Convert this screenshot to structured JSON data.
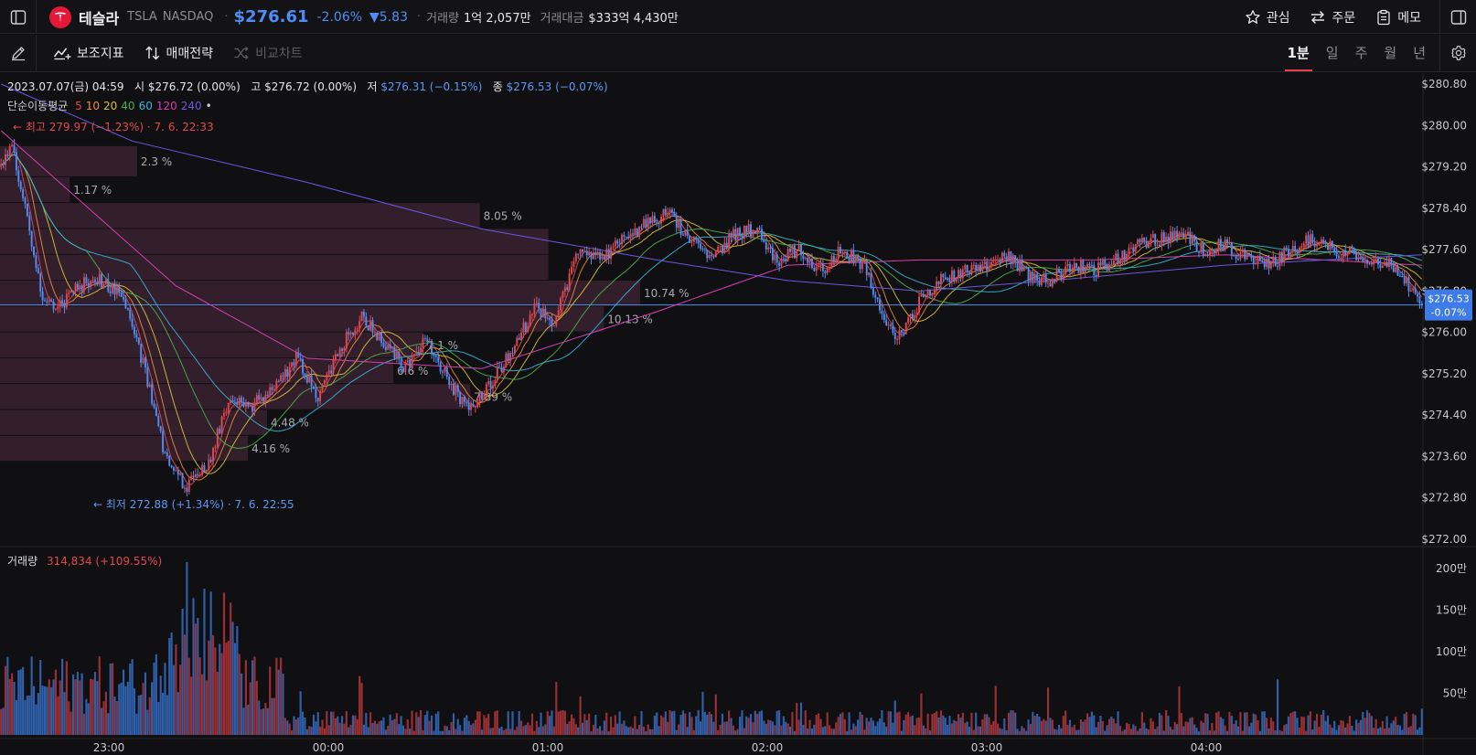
{
  "stock": {
    "name": "테슬라",
    "ticker": "TSLA",
    "exchange": "NASDAQ",
    "price": "$276.61",
    "change_pct": "-2.06%",
    "change_abs": "▼5.83",
    "volume_label": "거래량",
    "volume_value": "1억 2,057만",
    "amount_label": "거래대금",
    "amount_value": "$333억 4,430만"
  },
  "actions": {
    "watch": "관심",
    "order": "주문",
    "memo": "메모"
  },
  "toolbar": {
    "indicators": "보조지표",
    "strategy": "매매전략",
    "compare": "비교차트"
  },
  "periods": [
    {
      "label": "1분",
      "active": true
    },
    {
      "label": "일",
      "active": false
    },
    {
      "label": "주",
      "active": false
    },
    {
      "label": "월",
      "active": false
    },
    {
      "label": "년",
      "active": false
    }
  ],
  "info": {
    "date": "2023.07.07(금) 04:59",
    "open_label": "시",
    "open": "$276.72 (0.00%)",
    "high_label": "고",
    "high": "$276.72 (0.00%)",
    "low_label": "저",
    "low": "$276.31 (−0.15%)",
    "close_label": "종",
    "close": "$276.53 (−0.07%)"
  },
  "ma": {
    "title": "단순이동평균",
    "periods": [
      "5",
      "10",
      "20",
      "40",
      "60",
      "120",
      "240"
    ],
    "extra": "•"
  },
  "volume_legend": {
    "title": "거래량",
    "value": "314,834 (+109.55%)"
  },
  "colors": {
    "up": "#e0484e",
    "down": "#4e8df5",
    "up_volume": "#9b3034",
    "down_volume": "#2f5fa8",
    "volume_profile": "#3a2231",
    "ma": [
      "#e0484e",
      "#f08a3c",
      "#d9c23a",
      "#4cae4c",
      "#3bb4d8",
      "#d43fb2",
      "#6b58e0"
    ]
  },
  "chart_data": {
    "type": "candlestick",
    "price_axis": {
      "ticks": [
        "$280.80",
        "$280.00",
        "$279.20",
        "$278.40",
        "$277.60",
        "$276.80",
        "$276.00",
        "$275.20",
        "$274.40",
        "$273.60",
        "$272.80",
        "$272.00"
      ],
      "range": [
        272.0,
        280.8
      ]
    },
    "current_price": {
      "label": "$276.53",
      "change": "-0.07%",
      "value": 276.53
    },
    "time_axis": {
      "ticks": [
        "23:00",
        "00:00",
        "01:00",
        "02:00",
        "03:00",
        "04:00"
      ]
    },
    "high_marker": {
      "text": "← 최고 279.97 (−1.23%) · 7. 6. 22:33",
      "value": 279.97
    },
    "low_marker": {
      "text": "← 최저 272.88 (+1.34%) · 7. 6. 22:55",
      "value": 272.88
    },
    "volume_axis": {
      "ticks": [
        "200만",
        "150만",
        "100만",
        "50만"
      ],
      "max": 2200000
    },
    "volume_profile": [
      {
        "price_lo": 279.0,
        "price_hi": 279.6,
        "pct": "2.3 %"
      },
      {
        "price_lo": 278.5,
        "price_hi": 279.0,
        "pct": "1.17 %"
      },
      {
        "price_lo": 278.0,
        "price_hi": 278.5,
        "pct": "8.05 %"
      },
      {
        "price_lo": 277.5,
        "price_hi": 278.0,
        "pct": ""
      },
      {
        "price_lo": 277.0,
        "price_hi": 277.5,
        "pct": ""
      },
      {
        "price_lo": 276.5,
        "price_hi": 277.0,
        "pct": "10.74 %"
      },
      {
        "price_lo": 276.0,
        "price_hi": 276.5,
        "pct": "10.13 %"
      },
      {
        "price_lo": 275.5,
        "price_hi": 276.0,
        "pct": "7.1 %"
      },
      {
        "price_lo": 275.0,
        "price_hi": 275.5,
        "pct": "6.6 %"
      },
      {
        "price_lo": 274.5,
        "price_hi": 275.0,
        "pct": "7.89 %"
      },
      {
        "price_lo": 274.0,
        "price_hi": 274.5,
        "pct": "4.48 %"
      },
      {
        "price_lo": 273.5,
        "price_hi": 274.0,
        "pct": "4.16 %"
      }
    ],
    "price_path": [
      [
        0,
        279.2
      ],
      [
        5,
        279.6
      ],
      [
        10,
        278.6
      ],
      [
        18,
        276.8
      ],
      [
        25,
        276.4
      ],
      [
        35,
        276.9
      ],
      [
        45,
        277.0
      ],
      [
        55,
        276.7
      ],
      [
        65,
        275.4
      ],
      [
        75,
        273.6
      ],
      [
        85,
        273.0
      ],
      [
        95,
        273.5
      ],
      [
        105,
        274.8
      ],
      [
        115,
        274.6
      ],
      [
        125,
        274.9
      ],
      [
        135,
        275.5
      ],
      [
        145,
        274.8
      ],
      [
        155,
        275.7
      ],
      [
        165,
        276.3
      ],
      [
        175,
        275.8
      ],
      [
        185,
        275.3
      ],
      [
        195,
        275.9
      ],
      [
        205,
        275.0
      ],
      [
        215,
        274.5
      ],
      [
        225,
        275.1
      ],
      [
        235,
        275.8
      ],
      [
        245,
        276.5
      ],
      [
        252,
        276.1
      ],
      [
        258,
        276.8
      ],
      [
        265,
        277.7
      ],
      [
        275,
        277.4
      ],
      [
        285,
        277.8
      ],
      [
        295,
        278.1
      ],
      [
        305,
        278.3
      ],
      [
        315,
        277.8
      ],
      [
        325,
        277.4
      ],
      [
        335,
        277.9
      ],
      [
        345,
        278.0
      ],
      [
        355,
        277.4
      ],
      [
        365,
        277.6
      ],
      [
        375,
        277.2
      ],
      [
        385,
        277.6
      ],
      [
        395,
        277.3
      ],
      [
        405,
        276.1
      ],
      [
        412,
        275.9
      ],
      [
        420,
        276.6
      ],
      [
        430,
        277.0
      ],
      [
        440,
        277.2
      ],
      [
        450,
        277.3
      ],
      [
        460,
        277.5
      ],
      [
        470,
        277.1
      ],
      [
        480,
        277.0
      ],
      [
        490,
        277.3
      ],
      [
        500,
        277.2
      ],
      [
        510,
        277.4
      ],
      [
        520,
        277.7
      ],
      [
        530,
        277.8
      ],
      [
        540,
        277.9
      ],
      [
        550,
        277.6
      ],
      [
        560,
        277.7
      ],
      [
        570,
        277.4
      ],
      [
        580,
        277.3
      ],
      [
        590,
        277.6
      ],
      [
        600,
        277.8
      ],
      [
        610,
        277.6
      ],
      [
        620,
        277.5
      ],
      [
        630,
        277.4
      ],
      [
        640,
        277.2
      ],
      [
        650,
        276.5
      ]
    ],
    "ma_long": [
      {
        "period": "120",
        "points": [
          [
            0,
            279.9
          ],
          [
            80,
            276.9
          ],
          [
            140,
            275.5
          ],
          [
            220,
            275.3
          ],
          [
            300,
            276.4
          ],
          [
            360,
            277.3
          ],
          [
            420,
            277.4
          ],
          [
            500,
            277.4
          ],
          [
            560,
            277.5
          ],
          [
            650,
            277.3
          ]
        ]
      },
      {
        "period": "240",
        "points": [
          [
            0,
            280.8
          ],
          [
            60,
            279.7
          ],
          [
            140,
            278.9
          ],
          [
            220,
            278.0
          ],
          [
            300,
            277.4
          ],
          [
            360,
            277.0
          ],
          [
            420,
            276.8
          ],
          [
            480,
            277.0
          ],
          [
            560,
            277.3
          ],
          [
            650,
            277.5
          ]
        ]
      }
    ]
  }
}
